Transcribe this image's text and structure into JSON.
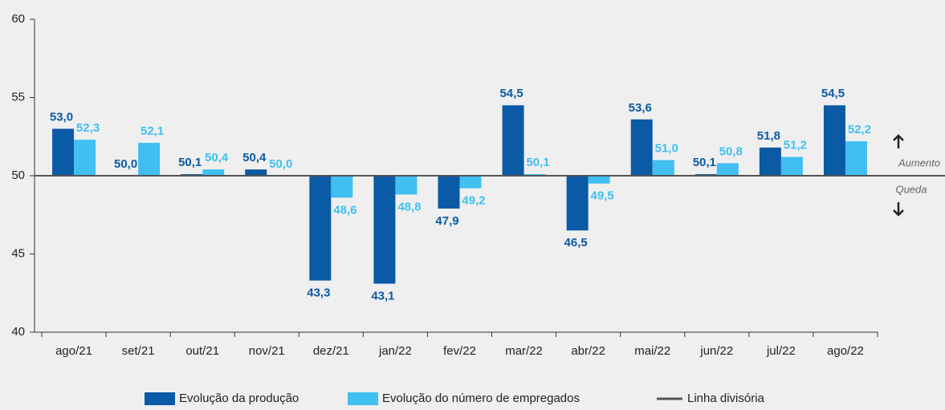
{
  "chart_data": {
    "type": "bar",
    "categories": [
      "ago/21",
      "set/21",
      "out/21",
      "nov/21",
      "dez/21",
      "jan/22",
      "fev/22",
      "mar/22",
      "abr/22",
      "mai/22",
      "jun/22",
      "jul/22",
      "ago/22"
    ],
    "series": [
      {
        "name": "Evolução da produção",
        "color": "#0b5aa6",
        "values": [
          53.0,
          50.0,
          50.1,
          50.4,
          43.3,
          43.1,
          47.9,
          54.5,
          46.5,
          53.6,
          50.1,
          51.8,
          54.5
        ],
        "value_labels": [
          "53,0",
          "50,0",
          "50,1",
          "50,4",
          "43,3",
          "43,1",
          "47,9",
          "54,5",
          "46,5",
          "53,6",
          "50,1",
          "51,8",
          "54,5"
        ]
      },
      {
        "name": "Evolução do número de empregados",
        "color": "#40bff0",
        "values": [
          52.3,
          52.1,
          50.4,
          50.0,
          48.6,
          48.8,
          49.2,
          50.1,
          49.5,
          51.0,
          50.8,
          51.2,
          52.2
        ],
        "value_labels": [
          "52,3",
          "52,1",
          "50,4",
          "50,0",
          "48,6",
          "48,8",
          "49,2",
          "50,1",
          "49,5",
          "51,0",
          "50,8",
          "51,2",
          "52,2"
        ]
      }
    ],
    "baseline": {
      "name": "Linha divisória",
      "value": 50,
      "color": "#555555"
    },
    "annotations": [
      "Aumento",
      "Queda"
    ],
    "ylim": [
      40,
      60
    ],
    "yticks": [
      40,
      45,
      50,
      55,
      60
    ]
  }
}
